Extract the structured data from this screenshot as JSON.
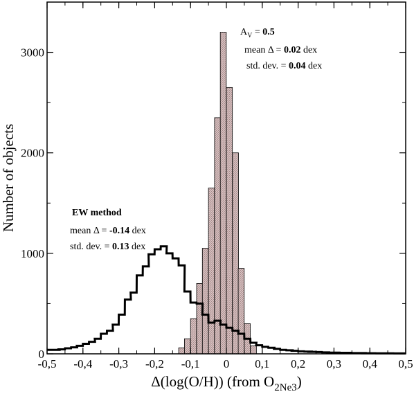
{
  "chart_data": {
    "type": "bar",
    "xlabel": "Δ(log(O/H)) (from O",
    "xlabel_sub": "2Ne3",
    "xlabel_close": ")",
    "ylabel": "Number of objects",
    "xlim": [
      -0.5,
      0.5
    ],
    "ylim": [
      0,
      3500
    ],
    "x_ticks": [
      -0.5,
      -0.4,
      -0.3,
      -0.2,
      -0.1,
      0.0,
      0.1,
      0.2,
      0.3,
      0.4,
      0.5
    ],
    "x_tick_labels": [
      "-0,5",
      "-0,4",
      "-0,3",
      "-0,2",
      "-0,1",
      "0",
      "0,1",
      "0,2",
      "0,3",
      "0,4",
      "0,5"
    ],
    "y_ticks": [
      0,
      1000,
      2000,
      3000
    ],
    "y_tick_labels": [
      "0",
      "1000",
      "2000",
      "3000"
    ],
    "series": [
      {
        "style": "filled-histogram",
        "color": "#c8a8a8",
        "bin_width": 0.0167,
        "bin_lefts": [
          -0.133,
          -0.117,
          -0.1,
          -0.083,
          -0.067,
          -0.05,
          -0.033,
          -0.017,
          0.0,
          0.017,
          0.033,
          0.05,
          0.067
        ],
        "values": [
          60,
          150,
          350,
          700,
          1050,
          1650,
          2350,
          3200,
          2650,
          2000,
          850,
          300,
          80
        ]
      },
      {
        "style": "step-outline",
        "color": "#000000",
        "bin_width": 0.0167,
        "bin_lefts": [
          -0.5,
          -0.483,
          -0.467,
          -0.45,
          -0.433,
          -0.417,
          -0.4,
          -0.383,
          -0.367,
          -0.35,
          -0.333,
          -0.317,
          -0.3,
          -0.283,
          -0.267,
          -0.25,
          -0.233,
          -0.217,
          -0.2,
          -0.183,
          -0.167,
          -0.15,
          -0.133,
          -0.117,
          -0.1,
          -0.083,
          -0.067,
          -0.05,
          -0.033,
          -0.017,
          0.0,
          0.017,
          0.033,
          0.05,
          0.067,
          0.083,
          0.1,
          0.117,
          0.133,
          0.15,
          0.167,
          0.183,
          0.2,
          0.217,
          0.233,
          0.25,
          0.267,
          0.283,
          0.3,
          0.317,
          0.333,
          0.35,
          0.367,
          0.383,
          0.4,
          0.417,
          0.433,
          0.45,
          0.467,
          0.483
        ],
        "values": [
          40,
          40,
          45,
          55,
          65,
          80,
          100,
          120,
          150,
          200,
          230,
          290,
          390,
          540,
          610,
          780,
          870,
          990,
          1040,
          1070,
          1000,
          950,
          880,
          620,
          510,
          500,
          390,
          310,
          330,
          290,
          260,
          230,
          200,
          150,
          110,
          85,
          70,
          60,
          50,
          40,
          35,
          30,
          25,
          22,
          20,
          18,
          15,
          12,
          12,
          10,
          10,
          8,
          8,
          6,
          6,
          5,
          5,
          5,
          4,
          4
        ]
      }
    ],
    "annotations": {
      "av_label_prefix": "A",
      "av_label_sub": "V",
      "av_label_suffix": " = ",
      "av_label_value": "0.5",
      "av_mean_prefix": "mean Δ = ",
      "av_mean_value": "0.02",
      "av_mean_unit": " dex",
      "av_std_prefix": "std. dev. = ",
      "av_std_value": "0.04",
      "av_std_unit": " dex",
      "ew_title": "EW method",
      "ew_mean_prefix": "mean Δ = ",
      "ew_mean_value": "-0.14",
      "ew_mean_unit": " dex",
      "ew_std_prefix": "std. dev. = ",
      "ew_std_value": "0.13",
      "ew_std_unit": " dex"
    }
  }
}
